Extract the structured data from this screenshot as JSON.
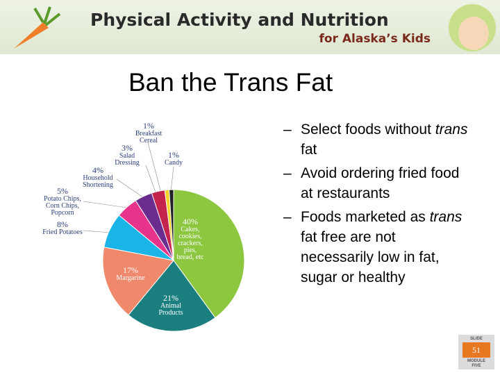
{
  "header": {
    "title": "Physical Activity and Nutrition",
    "subtitle": "for Alaska’s Kids"
  },
  "slide": {
    "title": "Ban the Trans Fat",
    "bullets": [
      [
        "Select foods without ",
        "trans",
        " fat"
      ],
      [
        "Avoid ordering fried food at restaurants"
      ],
      [
        "Foods marketed as ",
        "trans",
        " fat free are not necessarily low in fat, sugar or healthy"
      ]
    ],
    "badge": {
      "top": "SLIDE",
      "number": "51",
      "bottom": "MODULE FIVE"
    }
  },
  "chart_data": {
    "type": "pie",
    "categories": [
      "Cakes, cookies, crackers, pies, bread, etc",
      "Animal Products",
      "Margarine",
      "Fried Potatoes",
      "Potato Chips, Corn Chips, Popcorn",
      "Household Shortening",
      "Salad Dressing",
      "Breakfast Cereal",
      "Candy"
    ],
    "values": [
      40,
      21,
      17,
      8,
      5,
      4,
      3,
      1,
      1
    ],
    "value_labels": [
      "40%",
      "21%",
      "17%",
      "8%",
      "5%",
      "4%",
      "3%",
      "1%",
      "1%"
    ],
    "colors": [
      "#8dc63f",
      "#1b7f80",
      "#f0886c",
      "#1ab4e6",
      "#e8338a",
      "#6a2c8e",
      "#c4234e",
      "#f4d22a",
      "#222222"
    ]
  }
}
